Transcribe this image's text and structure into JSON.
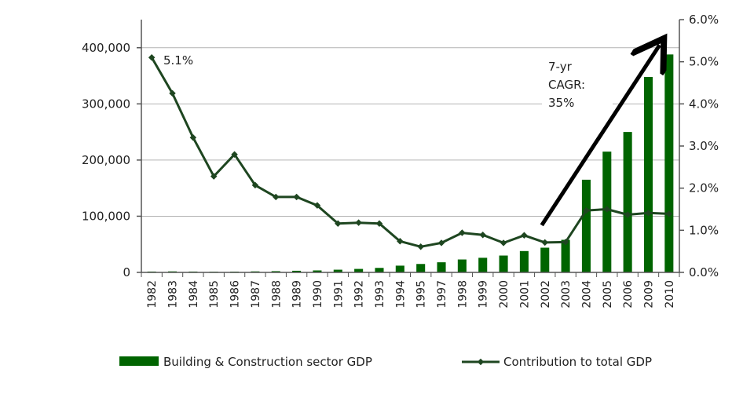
{
  "chart_data": {
    "type": "bar",
    "categories": [
      "1982",
      "1983",
      "1984",
      "1985",
      "1986",
      "1987",
      "1988",
      "1989",
      "1990",
      "1991",
      "1992",
      "1993",
      "1994",
      "1995",
      "1997",
      "1998",
      "1999",
      "2000",
      "2001",
      "2002",
      "2003",
      "2004",
      "2005",
      "2006",
      "2009",
      "2010"
    ],
    "series": [
      {
        "name": "Building & Construction sector GDP",
        "type": "bar",
        "axis": "left",
        "color": "#006400",
        "values": [
          1500,
          1800,
          1500,
          1200,
          1400,
          1800,
          2200,
          2900,
          3500,
          4800,
          6200,
          8000,
          12000,
          15000,
          18000,
          23000,
          26000,
          30000,
          38000,
          44000,
          58000,
          165000,
          215000,
          250000,
          348000,
          388000
        ]
      },
      {
        "name": "Contribution to total GDP",
        "type": "line",
        "axis": "right",
        "color": "#1e4620",
        "values": [
          5.1,
          4.25,
          3.2,
          2.28,
          2.8,
          2.07,
          1.79,
          1.79,
          1.59,
          1.16,
          1.18,
          1.16,
          0.74,
          0.61,
          0.7,
          0.94,
          0.89,
          0.7,
          0.88,
          0.71,
          0.72,
          1.47,
          1.5,
          1.37,
          1.41,
          1.39
        ]
      }
    ],
    "y_left": {
      "ylim": [
        0,
        450000
      ],
      "ticks": [
        0,
        100000,
        200000,
        300000,
        400000
      ],
      "tick_labels": [
        "0",
        "100,000",
        "200,000",
        "300,000",
        "400,000"
      ]
    },
    "y_right": {
      "ylim": [
        0,
        6
      ],
      "ticks": [
        0,
        1,
        2,
        3,
        4,
        5,
        6
      ],
      "tick_labels": [
        "0.0%",
        "1.0%",
        "2.0%",
        "3.0%",
        "4.0%",
        "5.0%",
        "6.0%"
      ]
    },
    "grid": "horizontal",
    "legend_position": "bottom",
    "annotations": {
      "first_value_label": "5.1%",
      "cagr_line1": "7-yr",
      "cagr_line2": "CAGR:",
      "cagr_line3": "35%",
      "arrow": {
        "from": "2002",
        "to": "2010"
      }
    }
  }
}
